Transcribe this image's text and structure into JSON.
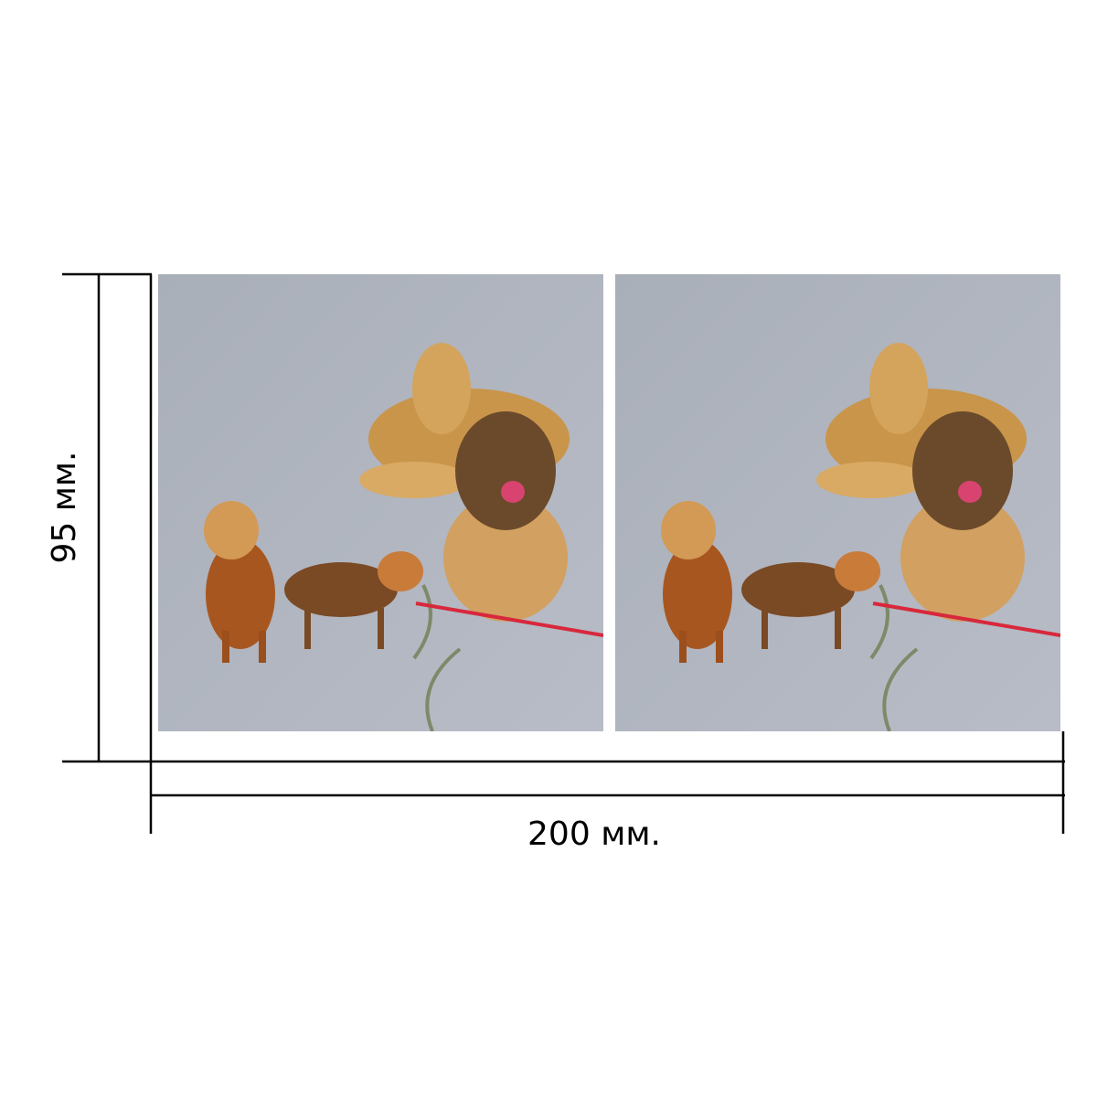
{
  "labels": {
    "height": "95 мм.",
    "width": "200 мм."
  }
}
